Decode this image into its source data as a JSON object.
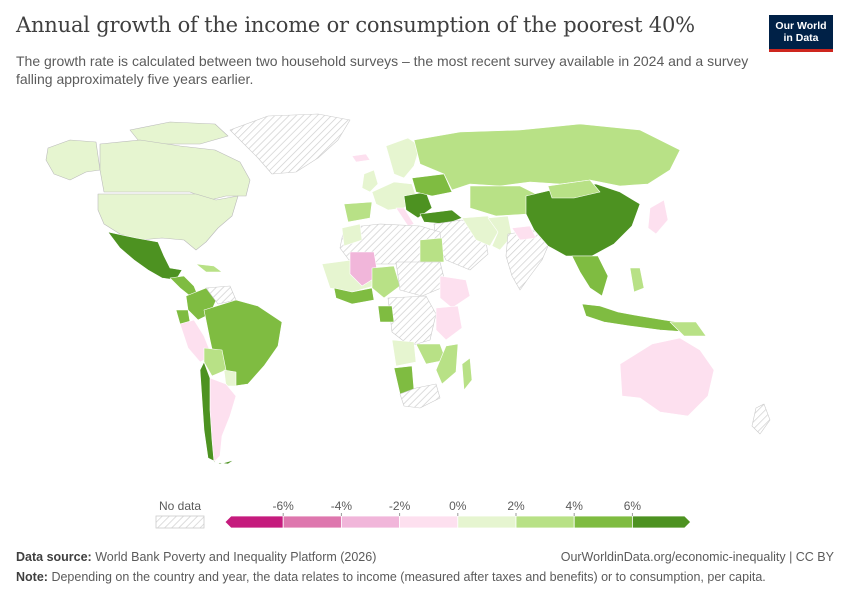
{
  "header": {
    "title": "Annual growth of the income or consumption of the poorest 40%",
    "subtitle": "The growth rate is calculated between two household surveys – the most recent survey available in 2024 and a survey falling approximately five years earlier.",
    "logo_line1": "Our World",
    "logo_line2": "in Data"
  },
  "legend": {
    "no_data_label": "No data",
    "tick_labels": [
      "-6%",
      "-4%",
      "-2%",
      "0%",
      "2%",
      "4%",
      "6%"
    ],
    "colors": [
      "#c51b7d",
      "#de77ae",
      "#f1b6da",
      "#fde0ef",
      "#e6f5d0",
      "#b8e186",
      "#7fbc41",
      "#4d9221"
    ],
    "no_data_color": "#e8e8e8"
  },
  "footer": {
    "source_label": "Data source:",
    "source_text": "World Bank Poverty and Inequality Platform (2026)",
    "url_license": "OurWorldinData.org/economic-inequality | CC BY",
    "note_label": "Note:",
    "note_text": "Depending on the country and year, the data relates to income (measured after taxes and benefits) or to consumption, per capita."
  }
}
